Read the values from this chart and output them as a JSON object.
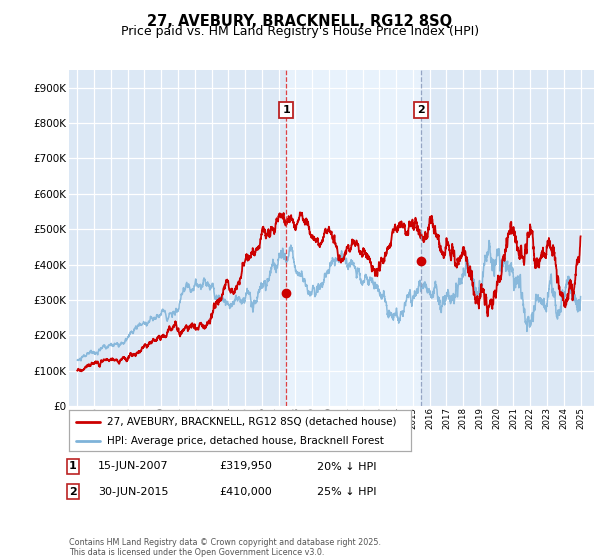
{
  "title": "27, AVEBURY, BRACKNELL, RG12 8SQ",
  "subtitle": "Price paid vs. HM Land Registry's House Price Index (HPI)",
  "plot_bg_color": "#dce8f5",
  "highlight_color": "#e8f2fc",
  "ylim": [
    0,
    950000
  ],
  "yticks": [
    0,
    100000,
    200000,
    300000,
    400000,
    500000,
    600000,
    700000,
    800000,
    900000
  ],
  "ytick_labels": [
    "£0",
    "£100K",
    "£200K",
    "£300K",
    "£400K",
    "£500K",
    "£600K",
    "£700K",
    "£800K",
    "£900K"
  ],
  "marker1_x": 2007.46,
  "marker1_y": 319950,
  "marker2_x": 2015.5,
  "marker2_y": 410000,
  "vline1_x": 2007.46,
  "vline2_x": 2015.5,
  "red_color": "#cc0000",
  "blue_color": "#7fb3d9",
  "legend_entries": [
    "27, AVEBURY, BRACKNELL, RG12 8SQ (detached house)",
    "HPI: Average price, detached house, Bracknell Forest"
  ],
  "annotation1_date": "15-JUN-2007",
  "annotation1_price": "£319,950",
  "annotation1_hpi": "20% ↓ HPI",
  "annotation2_date": "30-JUN-2015",
  "annotation2_price": "£410,000",
  "annotation2_hpi": "25% ↓ HPI",
  "footnote": "Contains HM Land Registry data © Crown copyright and database right 2025.\nThis data is licensed under the Open Government Licence v3.0.",
  "title_fontsize": 10.5,
  "subtitle_fontsize": 9,
  "tick_fontsize": 7.5,
  "xlim_left": 1994.5,
  "xlim_right": 2025.8
}
